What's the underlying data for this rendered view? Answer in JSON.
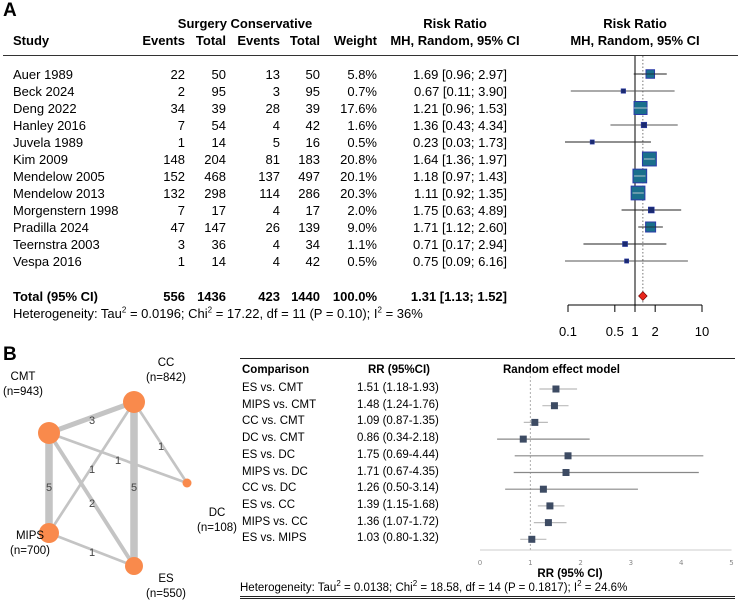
{
  "panel_a": {
    "label": "A",
    "header": {
      "group_label": "Surgery Conservative",
      "rr_title": "Risk Ratio",
      "rr_sub": "MH, Random, 95% CI",
      "plot_title": "Risk Ratio",
      "plot_sub": "MH, Random, 95% CI",
      "study": "Study",
      "s_events": "Events",
      "s_total": "Total",
      "c_events": "Events",
      "c_total": "Total",
      "weight": "Weight"
    },
    "studies": [
      {
        "study": "Auer 1989",
        "se": "22",
        "st": "50",
        "ce": "13",
        "ct": "50",
        "weight": "5.8%",
        "rr_text": "1.69 [0.96; 2.97]"
      },
      {
        "study": "Beck 2024",
        "se": "2",
        "st": "95",
        "ce": "3",
        "ct": "95",
        "weight": "0.7%",
        "rr_text": "0.67 [0.11; 3.90]"
      },
      {
        "study": "Deng 2022",
        "se": "34",
        "st": "39",
        "ce": "28",
        "ct": "39",
        "weight": "17.6%",
        "rr_text": "1.21 [0.96; 1.53]"
      },
      {
        "study": "Hanley 2016",
        "se": "7",
        "st": "54",
        "ce": "4",
        "ct": "42",
        "weight": "1.6%",
        "rr_text": "1.36 [0.43; 4.34]"
      },
      {
        "study": "Juvela 1989",
        "se": "1",
        "st": "14",
        "ce": "5",
        "ct": "16",
        "weight": "0.5%",
        "rr_text": "0.23 [0.03; 1.73]"
      },
      {
        "study": "Kim 2009",
        "se": "148",
        "st": "204",
        "ce": "81",
        "ct": "183",
        "weight": "20.8%",
        "rr_text": "1.64 [1.36; 1.97]"
      },
      {
        "study": "Mendelow 2005",
        "se": "152",
        "st": "468",
        "ce": "137",
        "ct": "497",
        "weight": "20.1%",
        "rr_text": "1.18 [0.97; 1.43]"
      },
      {
        "study": "Mendelow 2013",
        "se": "132",
        "st": "298",
        "ce": "114",
        "ct": "286",
        "weight": "20.3%",
        "rr_text": "1.11 [0.92; 1.35]"
      },
      {
        "study": "Morgenstern 1998",
        "se": "7",
        "st": "17",
        "ce": "4",
        "ct": "17",
        "weight": "2.0%",
        "rr_text": "1.75 [0.63; 4.89]"
      },
      {
        "study": "Pradilla 2024",
        "se": "47",
        "st": "147",
        "ce": "26",
        "ct": "139",
        "weight": "9.0%",
        "rr_text": "1.71 [1.12; 2.60]"
      },
      {
        "study": "Teernstra 2003",
        "se": "3",
        "st": "36",
        "ce": "4",
        "ct": "34",
        "weight": "1.1%",
        "rr_text": "0.71 [0.17; 2.94]"
      },
      {
        "study": "Vespa 2016",
        "se": "1",
        "st": "14",
        "ce": "4",
        "ct": "42",
        "weight": "0.5%",
        "rr_text": "0.75 [0.09; 6.16]"
      }
    ],
    "total": {
      "study": "Total (95% CI)",
      "se": "556",
      "st": "1436",
      "ce": "423",
      "ct": "1440",
      "weight": "100.0%",
      "rr_text": "1.31 [1.13; 1.52]"
    },
    "heterogeneity": [
      "Heterogeneity: Tau",
      "2",
      " = 0.0196; Chi",
      "2",
      " = 17.22, df = 11 (P = 0.10); I",
      "2",
      " = 36%"
    ]
  },
  "panel_b": {
    "label": "B",
    "network": {
      "nodes": [
        {
          "id": "CMT",
          "label": "CMT",
          "n": "(n=943)"
        },
        {
          "id": "CC",
          "label": "CC",
          "n": "(n=842)"
        },
        {
          "id": "DC",
          "label": "DC",
          "n": "(n=108)"
        },
        {
          "id": "MIPS",
          "label": "MIPS",
          "n": "(n=700)"
        },
        {
          "id": "ES",
          "label": "ES",
          "n": "(n=550)"
        }
      ],
      "edges": [
        {
          "from": "CMT",
          "to": "CC",
          "studies": 3
        },
        {
          "from": "CMT",
          "to": "MIPS",
          "studies": 5
        },
        {
          "from": "CC",
          "to": "ES",
          "studies": 5
        },
        {
          "from": "CMT",
          "to": "ES",
          "studies": 2
        },
        {
          "from": "CC",
          "to": "MIPS",
          "studies": 1
        },
        {
          "from": "CMT",
          "to": "DC",
          "studies": 1
        },
        {
          "from": "CC",
          "to": "DC",
          "studies": 1
        },
        {
          "from": "MIPS",
          "to": "ES",
          "studies": 1
        }
      ],
      "node_color": "#f98a4c",
      "edge_color": "#c4c4c4"
    },
    "header": {
      "comparison": "Comparison",
      "rr": "RR (95%CI)",
      "model": "Random effect model"
    },
    "xlabel": "RR (95% CI)",
    "heterogeneity": [
      "Heterogeneity: Tau",
      "2",
      " = 0.0138; Chi",
      "2",
      " = 18.58, df = 14 (P = 0.1817); I",
      "2",
      " = 24.6%"
    ]
  },
  "chart_data": [
    {
      "type": "forest",
      "title": "Risk Ratio MH, Random, 95% CI",
      "scale": "log",
      "xlim": [
        0.1,
        10
      ],
      "ticks": [
        0.1,
        0.5,
        1,
        2,
        10
      ],
      "tick_labels": [
        "0.1",
        "0.5",
        "1",
        "2",
        "10"
      ],
      "reference_line": 1,
      "pooled_line": 1.31,
      "box_color": "#1a6f8c",
      "diamond_color": "#e8261c",
      "points": [
        {
          "label": "Auer 1989",
          "rr": 1.69,
          "lo": 0.96,
          "hi": 2.97,
          "weight": 5.8
        },
        {
          "label": "Beck 2024",
          "rr": 0.67,
          "lo": 0.11,
          "hi": 3.9,
          "weight": 0.7
        },
        {
          "label": "Deng 2022",
          "rr": 1.21,
          "lo": 0.96,
          "hi": 1.53,
          "weight": 17.6
        },
        {
          "label": "Hanley 2016",
          "rr": 1.36,
          "lo": 0.43,
          "hi": 4.34,
          "weight": 1.6
        },
        {
          "label": "Juvela 1989",
          "rr": 0.23,
          "lo": 0.03,
          "hi": 1.73,
          "weight": 0.5
        },
        {
          "label": "Kim 2009",
          "rr": 1.64,
          "lo": 1.36,
          "hi": 1.97,
          "weight": 20.8
        },
        {
          "label": "Mendelow 2005",
          "rr": 1.18,
          "lo": 0.97,
          "hi": 1.43,
          "weight": 20.1
        },
        {
          "label": "Mendelow 2013",
          "rr": 1.11,
          "lo": 0.92,
          "hi": 1.35,
          "weight": 20.3
        },
        {
          "label": "Morgenstern 1998",
          "rr": 1.75,
          "lo": 0.63,
          "hi": 4.89,
          "weight": 2.0
        },
        {
          "label": "Pradilla 2024",
          "rr": 1.71,
          "lo": 1.12,
          "hi": 2.6,
          "weight": 9.0
        },
        {
          "label": "Teernstra 2003",
          "rr": 0.71,
          "lo": 0.17,
          "hi": 2.94,
          "weight": 1.1
        },
        {
          "label": "Vespa 2016",
          "rr": 0.75,
          "lo": 0.09,
          "hi": 6.16,
          "weight": 0.5
        }
      ],
      "pooled": {
        "label": "Total (95% CI)",
        "rr": 1.31,
        "lo": 1.13,
        "hi": 1.52
      }
    },
    {
      "type": "forest",
      "title": "Random effect model",
      "xlabel": "RR (95% CI)",
      "scale": "linear",
      "xlim": [
        0,
        5
      ],
      "ticks": [
        0,
        1,
        2,
        3,
        4,
        5
      ],
      "tick_labels": [
        "0",
        "1",
        "2",
        "3",
        "4",
        "5"
      ],
      "reference_line": 1,
      "marker_color": "#3d4b63",
      "points": [
        {
          "label": "ES vs. CMT",
          "rr": 1.51,
          "lo": 1.18,
          "hi": 1.93,
          "text": "1.51 (1.18-1.93)"
        },
        {
          "label": "MIPS vs. CMT",
          "rr": 1.48,
          "lo": 1.24,
          "hi": 1.76,
          "text": "1.48 (1.24-1.76)"
        },
        {
          "label": "CC vs. CMT",
          "rr": 1.09,
          "lo": 0.87,
          "hi": 1.35,
          "text": "1.09 (0.87-1.35)"
        },
        {
          "label": "DC vs. CMT",
          "rr": 0.86,
          "lo": 0.34,
          "hi": 2.18,
          "text": "0.86 (0.34-2.18)"
        },
        {
          "label": "ES vs. DC",
          "rr": 1.75,
          "lo": 0.69,
          "hi": 4.44,
          "text": "1.75 (0.69-4.44)"
        },
        {
          "label": "MIPS vs. DC",
          "rr": 1.71,
          "lo": 0.67,
          "hi": 4.35,
          "text": "1.71 (0.67-4.35)"
        },
        {
          "label": "CC vs. DC",
          "rr": 1.26,
          "lo": 0.5,
          "hi": 3.14,
          "text": "1.26 (0.50-3.14)"
        },
        {
          "label": "ES vs. CC",
          "rr": 1.39,
          "lo": 1.15,
          "hi": 1.68,
          "text": "1.39 (1.15-1.68)"
        },
        {
          "label": "MIPS vs. CC",
          "rr": 1.36,
          "lo": 1.07,
          "hi": 1.72,
          "text": "1.36 (1.07-1.72)"
        },
        {
          "label": "ES vs. MIPS",
          "rr": 1.03,
          "lo": 0.8,
          "hi": 1.32,
          "text": "1.03 (0.80-1.32)"
        }
      ]
    }
  ]
}
